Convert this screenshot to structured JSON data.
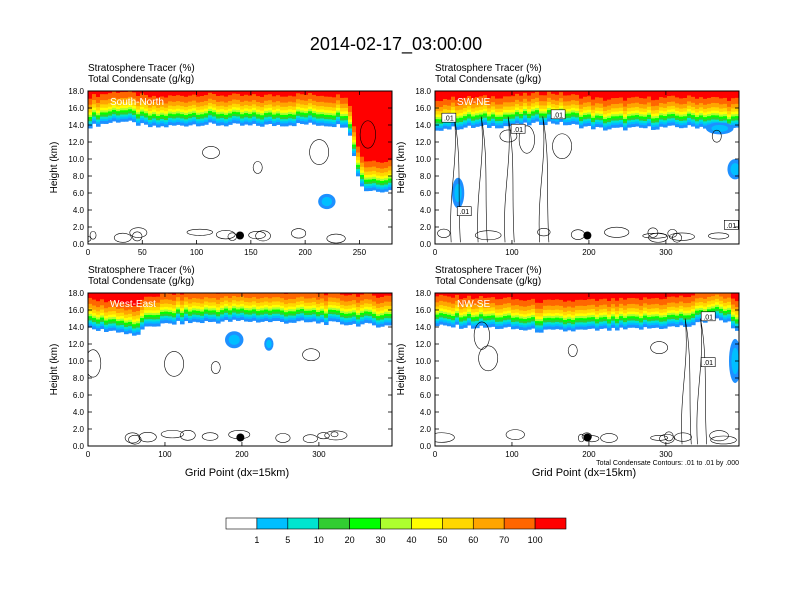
{
  "title": "2014-02-17_03:00:00",
  "colors": {
    "levels": [
      "#ffffff",
      "#1e90ff",
      "#00bfff",
      "#00e5cf",
      "#32cd32",
      "#00ff00",
      "#adff2f",
      "#ffff00",
      "#ffd700",
      "#ffa500",
      "#ff6600",
      "#ff0000"
    ],
    "contour": "#000000"
  },
  "chart_data": [
    {
      "type": "heatmap",
      "name": "South-North",
      "title_line1": "Stratosphere Tracer   (%)",
      "title_line2": "Total Condensate   (g/kg)",
      "xlabel": "",
      "ylabel": "Height (km)",
      "xlim": [
        0,
        280
      ],
      "ylim": [
        0,
        18
      ],
      "xticks": [
        "0",
        "50",
        "100",
        "150",
        "200",
        "250"
      ],
      "yticks": [
        "0.0",
        "2.0",
        "4.0",
        "6.0",
        "8.0",
        "10.0",
        "12.0",
        "14.0",
        "16.0",
        "18.0"
      ],
      "marker_x": 140,
      "marker_y": 1.0,
      "tropopause_km": [
        [
          0,
          14.5
        ],
        [
          30,
          15.2
        ],
        [
          60,
          14.4
        ],
        [
          100,
          14.8
        ],
        [
          150,
          14.6
        ],
        [
          200,
          14.8
        ],
        [
          240,
          14.6
        ],
        [
          245,
          11
        ],
        [
          250,
          8
        ],
        [
          255,
          7
        ],
        [
          280,
          7
        ]
      ],
      "blobs": [
        [
          220,
          5,
          8,
          0.9
        ]
      ],
      "contour_labels": []
    },
    {
      "type": "heatmap",
      "name": "SW-NE",
      "title_line1": "Stratosphere Tracer   (%)",
      "title_line2": "Total Condensate   (g/kg)",
      "xlabel": "",
      "ylabel": "Height (km)",
      "xlim": [
        0,
        395
      ],
      "ylim": [
        0,
        18
      ],
      "xticks": [
        "0",
        "100",
        "200",
        "300"
      ],
      "yticks": [
        "0.0",
        "2.0",
        "4.0",
        "6.0",
        "8.0",
        "10.0",
        "12.0",
        "14.0",
        "16.0",
        "18.0"
      ],
      "marker_x": 198,
      "marker_y": 1.0,
      "tropopause_km": [
        [
          0,
          14.2
        ],
        [
          40,
          14.4
        ],
        [
          100,
          14.6
        ],
        [
          150,
          15.0
        ],
        [
          220,
          14.2
        ],
        [
          300,
          14.4
        ],
        [
          340,
          14.5
        ],
        [
          395,
          14.2
        ]
      ],
      "blobs": [
        [
          30,
          6,
          8,
          1.8
        ],
        [
          390,
          8.8,
          10,
          1.2
        ],
        [
          370,
          13.6,
          18,
          0.7
        ]
      ],
      "contour_labels": [
        {
          "x": 18,
          "y": 14.8,
          "text": ".01"
        },
        {
          "x": 108,
          "y": 13.5,
          "text": ".01"
        },
        {
          "x": 160,
          "y": 15.2,
          "text": ".01"
        },
        {
          "x": 38,
          "y": 3.8,
          "text": ".01"
        },
        {
          "x": 385,
          "y": 2.2,
          "text": ".01"
        }
      ]
    },
    {
      "type": "heatmap",
      "name": "West-East",
      "title_line1": "Stratosphere Tracer   (%)",
      "title_line2": "Total Condensate   (g/kg)",
      "xlabel": "Grid Point (dx=15km)",
      "ylabel": "Height (km)",
      "xlim": [
        0,
        395
      ],
      "ylim": [
        0,
        18
      ],
      "xticks": [
        "0",
        "100",
        "200",
        "300"
      ],
      "yticks": [
        "0.0",
        "2.0",
        "4.0",
        "6.0",
        "8.0",
        "10.0",
        "12.0",
        "14.0",
        "16.0",
        "18.0"
      ],
      "marker_x": 198,
      "marker_y": 1.0,
      "tropopause_km": [
        [
          0,
          14.4
        ],
        [
          40,
          14.2
        ],
        [
          60,
          13.6
        ],
        [
          80,
          14.8
        ],
        [
          120,
          15.2
        ],
        [
          200,
          15.4
        ],
        [
          300,
          15.2
        ],
        [
          395,
          14.8
        ]
      ],
      "blobs": [
        [
          190,
          12.5,
          12,
          1.0
        ],
        [
          235,
          12.0,
          6,
          0.8
        ]
      ],
      "contour_labels": []
    },
    {
      "type": "heatmap",
      "name": "NW-SE",
      "title_line1": "Stratosphere Tracer   (%)",
      "title_line2": "Total Condensate   (g/kg)",
      "xlabel": "Grid Point (dx=15km)",
      "ylabel": "Height (km)",
      "xlim": [
        0,
        395
      ],
      "ylim": [
        0,
        18
      ],
      "xticks": [
        "0",
        "100",
        "200",
        "300"
      ],
      "yticks": [
        "0.0",
        "2.0",
        "4.0",
        "6.0",
        "8.0",
        "10.0",
        "12.0",
        "14.0",
        "16.0",
        "18.0"
      ],
      "marker_x": 198,
      "marker_y": 1.0,
      "tropopause_km": [
        [
          0,
          14.8
        ],
        [
          80,
          14.6
        ],
        [
          140,
          14.2
        ],
        [
          250,
          14.4
        ],
        [
          330,
          14.8
        ],
        [
          360,
          15.6
        ],
        [
          380,
          15.4
        ],
        [
          395,
          14.0
        ]
      ],
      "blobs": [
        [
          390,
          10,
          8,
          2.6
        ]
      ],
      "contour_labels": [
        {
          "x": 355,
          "y": 15.2,
          "text": ".01"
        },
        {
          "x": 355,
          "y": 9.8,
          "text": ".01"
        }
      ],
      "footnote": "Total Condensate Contours: .01 to .01 by .000"
    }
  ],
  "colorbar": {
    "labels": [
      "1",
      "5",
      "10",
      "20",
      "30",
      "40",
      "50",
      "60",
      "70",
      "100"
    ]
  }
}
